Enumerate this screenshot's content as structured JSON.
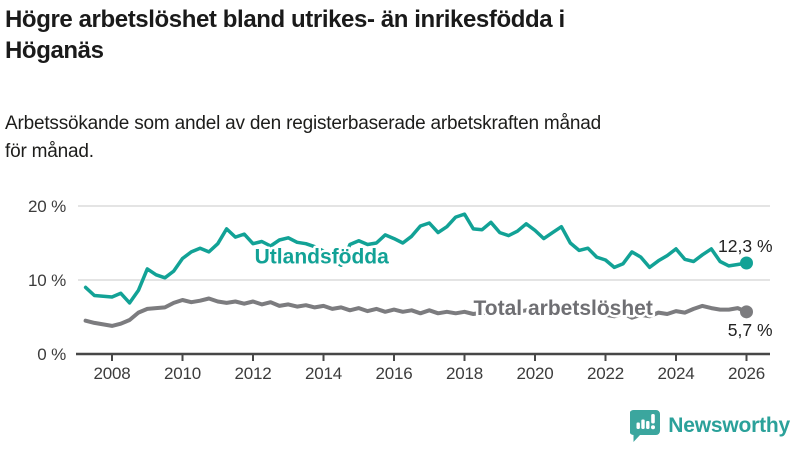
{
  "header": {
    "title_lines": [
      "Högre arbetslöshet bland utrikes- än inrikesfödda i",
      "Höganäs"
    ],
    "subtitle_lines": [
      "Arbetssökande som andel av den registerbaserade arbetskraften månad",
      "för månad."
    ]
  },
  "footer": {
    "brand": "Newsworthy"
  },
  "colors": {
    "accent_teal": "#12a296",
    "line_gray": "#7c7c7f",
    "gridline": "#dcdcdc",
    "axis": "#474747",
    "text_dark": "#1a1a1a",
    "logo_teal": "#3ba69e"
  },
  "icons": [
    {
      "name": "newsworthy-icon",
      "description": "teal speech bubble containing white bar chart and exclamation mark"
    }
  ],
  "chart_data": {
    "type": "line",
    "title": "Högre arbetslöshet bland utrikes- än inrikesfödda i Höganäs",
    "subtitle": "Arbetssökande som andel av den registerbaserade arbetskraften månad för månad.",
    "xlabel": "",
    "ylabel": "",
    "grid": "horizontal-only",
    "legend_position": "inline-labels-on-lines",
    "x_axis": {
      "ticks": [
        2008,
        2010,
        2012,
        2014,
        2016,
        2018,
        2020,
        2022,
        2024,
        2026
      ],
      "tick_labels": [
        "2008",
        "2010",
        "2012",
        "2014",
        "2016",
        "2018",
        "2020",
        "2022",
        "2024",
        "2026"
      ],
      "range": [
        2007.0,
        2026.7
      ]
    },
    "y_axis": {
      "ticks": [
        0,
        10,
        20
      ],
      "tick_labels": [
        "0 %",
        "10 %",
        "20 %"
      ],
      "ylim": [
        0,
        21.5
      ],
      "unit": "%"
    },
    "sampling": {
      "x_start": 2007.25,
      "x_step": 0.25
    },
    "series": [
      {
        "name": "Utlandsfödda",
        "color": "#12a296",
        "label_color": "#12a296",
        "stroke_width": 3.5,
        "end_value": 12.3,
        "end_label": "12,3 %",
        "end_label_position": "above",
        "label_at": {
          "year": 2013.95,
          "value": 13.3
        },
        "values": [
          9.0,
          7.9,
          7.8,
          7.7,
          8.2,
          6.9,
          8.6,
          11.5,
          10.7,
          10.3,
          11.2,
          12.9,
          13.8,
          14.3,
          13.8,
          14.9,
          16.9,
          15.8,
          16.2,
          14.9,
          15.2,
          14.6,
          15.4,
          15.7,
          15.1,
          14.9,
          14.5,
          13.9,
          12.6,
          12.0,
          14.8,
          15.3,
          14.8,
          15.0,
          16.1,
          15.6,
          15.0,
          15.9,
          17.3,
          17.7,
          16.4,
          17.2,
          18.5,
          18.9,
          16.9,
          16.8,
          17.8,
          16.4,
          16.0,
          16.6,
          17.6,
          16.7,
          15.6,
          16.4,
          17.2,
          15.0,
          14.0,
          14.3,
          13.1,
          12.7,
          11.7,
          12.2,
          13.8,
          13.1,
          11.7,
          12.6,
          13.3,
          14.2,
          12.8,
          12.5,
          13.4,
          14.2,
          12.5,
          11.9,
          12.1,
          12.3
        ]
      },
      {
        "name": "Total arbetslöshet",
        "color": "#7c7c7f",
        "label_color": "#6f6f73",
        "stroke_width": 4,
        "end_value": 5.7,
        "end_label": "5,7 %",
        "end_label_position": "below",
        "label_at": {
          "year": 2020.8,
          "value": 6.35
        },
        "values": [
          4.5,
          4.2,
          4.0,
          3.8,
          4.1,
          4.6,
          5.6,
          6.1,
          6.2,
          6.3,
          6.9,
          7.3,
          7.0,
          7.2,
          7.5,
          7.1,
          6.9,
          7.1,
          6.8,
          7.1,
          6.7,
          7.0,
          6.5,
          6.7,
          6.4,
          6.6,
          6.3,
          6.5,
          6.1,
          6.3,
          5.9,
          6.2,
          5.8,
          6.1,
          5.7,
          6.0,
          5.7,
          5.9,
          5.5,
          5.9,
          5.5,
          5.7,
          5.5,
          5.7,
          5.4,
          5.6,
          5.5,
          5.6,
          5.4,
          5.7,
          5.9,
          6.1,
          6.5,
          6.6,
          6.3,
          6.1,
          5.9,
          5.7,
          5.5,
          5.3,
          5.1,
          5.5,
          4.9,
          5.3,
          5.1,
          5.6,
          5.4,
          5.8,
          5.6,
          6.1,
          6.5,
          6.2,
          6.0,
          6.0,
          6.2,
          5.7
        ]
      }
    ]
  }
}
